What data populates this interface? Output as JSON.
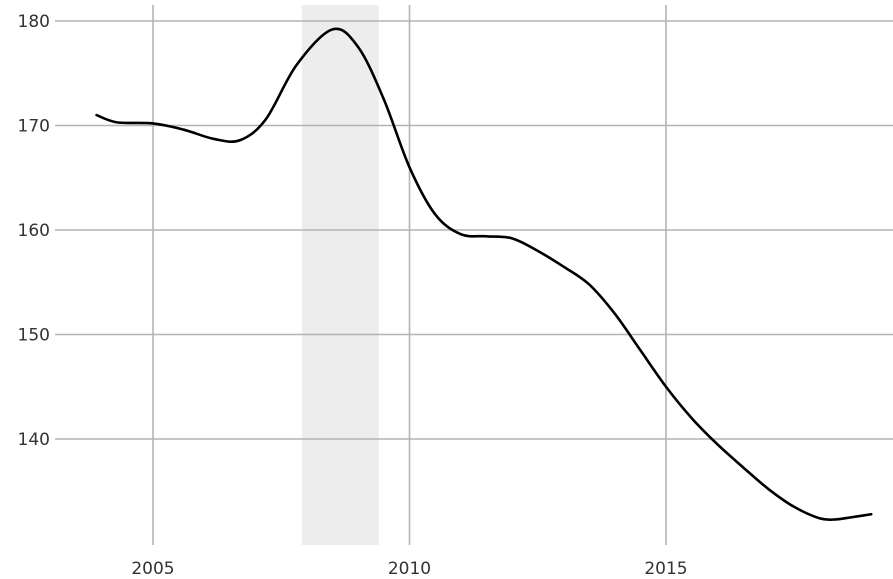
{
  "chart_data": {
    "type": "line",
    "title": "",
    "xlabel": "",
    "ylabel": "",
    "xlim": [
      2004,
      2019.2
    ],
    "ylim": [
      130,
      181
    ],
    "x_ticks": [
      2005,
      2010,
      2015
    ],
    "x_tick_labels": [
      "2005",
      "2010",
      "2015"
    ],
    "y_ticks": [
      140,
      150,
      160,
      170,
      180
    ],
    "y_tick_labels": [
      "140",
      "150",
      "160",
      "170",
      "180"
    ],
    "grid": true,
    "shaded_regions": [
      {
        "x_start": 2007.9,
        "x_end": 2009.4,
        "color": "#ededed"
      }
    ],
    "series": [
      {
        "color": "#000000",
        "x": [
          2003.9,
          2004.3,
          2005.0,
          2005.6,
          2006.2,
          2006.7,
          2007.2,
          2007.8,
          2008.5,
          2009.0,
          2009.5,
          2010.0,
          2010.5,
          2011.0,
          2011.5,
          2012.0,
          2012.5,
          2013.0,
          2013.5,
          2014.0,
          2014.5,
          2015.0,
          2015.5,
          2016.0,
          2016.5,
          2017.0,
          2017.5,
          2018.0,
          2018.3,
          2018.6,
          2019.0
        ],
        "y": [
          171.0,
          170.3,
          170.2,
          169.6,
          168.7,
          168.6,
          170.6,
          175.8,
          179.2,
          177.5,
          172.5,
          166.0,
          161.5,
          159.6,
          159.4,
          159.2,
          158.0,
          156.5,
          154.8,
          152.0,
          148.5,
          145.0,
          142.0,
          139.5,
          137.3,
          135.2,
          133.5,
          132.4,
          132.3,
          132.5,
          132.8
        ]
      }
    ]
  }
}
